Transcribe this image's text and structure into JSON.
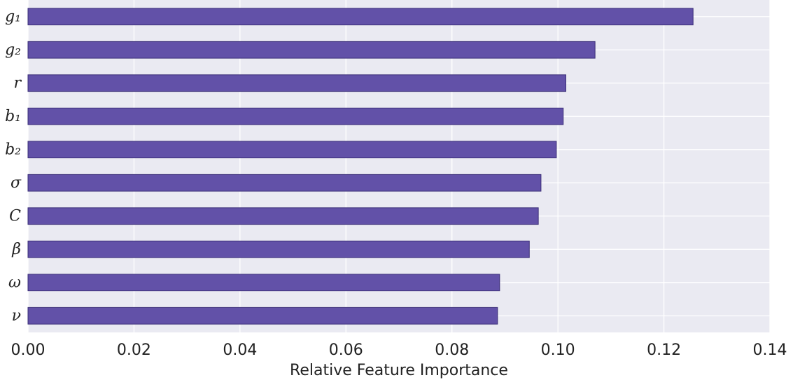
{
  "chart_data": {
    "type": "bar",
    "orientation": "horizontal",
    "categories": [
      "g₁",
      "g₂",
      "r",
      "b₁",
      "b₂",
      "σ",
      "C",
      "β",
      "ω",
      "ν"
    ],
    "values": [
      0.1255,
      0.107,
      0.1015,
      0.101,
      0.0997,
      0.0968,
      0.0963,
      0.0946,
      0.089,
      0.0886
    ],
    "xlabel": "Relative Feature Importance",
    "ylabel": "",
    "xlim": [
      0.0,
      0.14
    ],
    "xticks": [
      "0.00",
      "0.02",
      "0.04",
      "0.06",
      "0.08",
      "0.10",
      "0.12",
      "0.14"
    ],
    "grid": true,
    "colors": {
      "bar": "#6251a8",
      "bar_edge": "#3b2f78",
      "plot_background": "#eaeaf2",
      "grid": "#ffffff"
    }
  }
}
